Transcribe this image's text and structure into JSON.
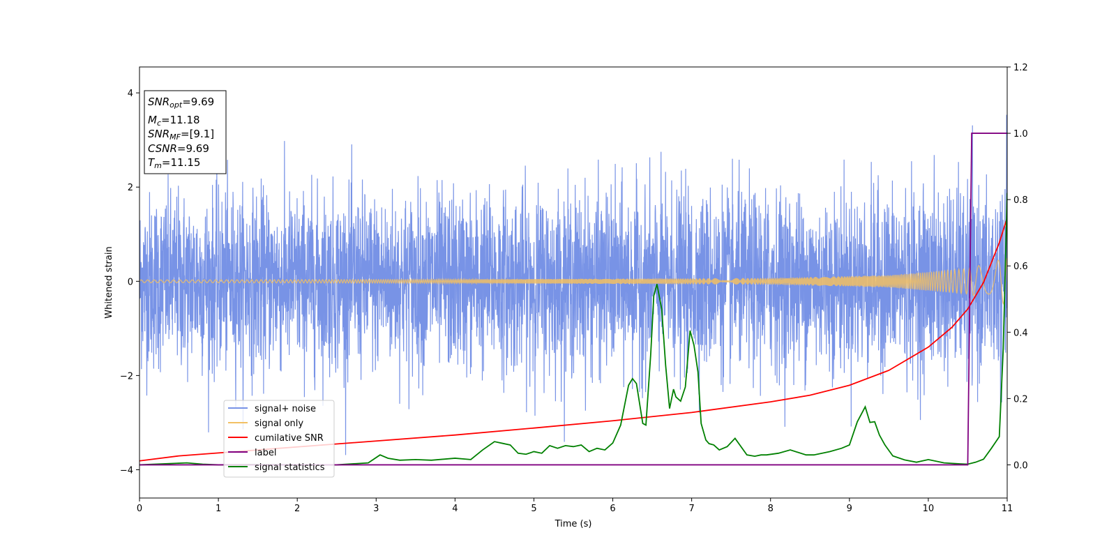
{
  "chart_data": {
    "type": "line",
    "xlabel": "Time (s)",
    "ylabel": "Whitened strain",
    "xlim": [
      0,
      11
    ],
    "ylim": [
      -4.6,
      4.55
    ],
    "y2lim": [
      -0.1,
      1.2
    ],
    "x_ticks": [
      "0",
      "1",
      "2",
      "3",
      "4",
      "5",
      "6",
      "7",
      "8",
      "9",
      "10",
      "11"
    ],
    "y_ticks": [
      "4",
      "2",
      "0",
      "−2",
      "−4"
    ],
    "y2_ticks": [
      "1.2",
      "1.0",
      "0.8",
      "0.6",
      "0.4",
      "0.2",
      "0.0"
    ],
    "grid": false,
    "legend_position": "lower-left",
    "info_box": {
      "snr_opt": {
        "base": "SNR",
        "sub": "opt",
        "value": "=9.69"
      },
      "mc": {
        "base": "M",
        "sub": "c",
        "value": "=11.18"
      },
      "snr_mf": {
        "base": "SNR",
        "sub": "MF",
        "value": "=[9.1]"
      },
      "csnr": {
        "base": "CSNR",
        "value": "=9.69"
      },
      "tm": {
        "base": "T",
        "sub": "m",
        "value": "=11.15"
      }
    },
    "series": [
      {
        "name": "signal+ noise",
        "color": "#7893e6",
        "axis": "left",
        "description_values": {
          "noise_std": 1.0,
          "noise_range": [
            -4.1,
            4.1
          ]
        }
      },
      {
        "name": "signal only",
        "color": "#f2c063",
        "axis": "left",
        "envelope": {
          "x": [
            0,
            4,
            8,
            9.5,
            10.5,
            11
          ],
          "amplitude": [
            0.03,
            0.04,
            0.07,
            0.13,
            0.27,
            0.5
          ]
        }
      },
      {
        "name": "cumilative SNR",
        "color": "#ff0000",
        "axis": "right",
        "x": [
          0,
          0.5,
          1,
          2,
          3,
          4,
          5,
          6,
          7,
          8,
          8.5,
          9,
          9.5,
          10,
          10.3,
          10.5,
          10.7,
          10.9,
          11
        ],
        "y": [
          0.012,
          0.027,
          0.036,
          0.054,
          0.072,
          0.09,
          0.111,
          0.133,
          0.158,
          0.19,
          0.21,
          0.24,
          0.285,
          0.355,
          0.415,
          0.47,
          0.55,
          0.67,
          0.745
        ]
      },
      {
        "name": "label",
        "color": "#800080",
        "axis": "right",
        "x": [
          0,
          10.5,
          10.55,
          11
        ],
        "y": [
          0.0,
          0.0,
          1.0,
          1.0
        ]
      },
      {
        "name": "signal statistics",
        "color": "#008000",
        "axis": "right",
        "x": [
          0,
          0.3,
          0.6,
          0.8,
          1,
          1.5,
          2,
          2.5,
          2.9,
          3.05,
          3.15,
          3.3,
          3.5,
          3.7,
          4.0,
          4.2,
          4.35,
          4.5,
          4.6,
          4.7,
          4.8,
          4.9,
          5.0,
          5.1,
          5.2,
          5.3,
          5.4,
          5.5,
          5.6,
          5.7,
          5.8,
          5.9,
          6.0,
          6.1,
          6.2,
          6.25,
          6.3,
          6.38,
          6.42,
          6.48,
          6.52,
          6.56,
          6.62,
          6.67,
          6.72,
          6.77,
          6.8,
          6.86,
          6.92,
          6.98,
          7.03,
          7.08,
          7.12,
          7.18,
          7.22,
          7.28,
          7.35,
          7.45,
          7.55,
          7.7,
          7.8,
          7.88,
          7.95,
          8.1,
          8.25,
          8.45,
          8.55,
          8.75,
          8.9,
          9.0,
          9.1,
          9.2,
          9.26,
          9.32,
          9.38,
          9.45,
          9.55,
          9.7,
          9.85,
          10.0,
          10.2,
          10.4,
          10.5,
          10.6,
          10.7,
          10.8,
          10.9,
          10.95,
          11.0
        ],
        "y": [
          0.0,
          0.003,
          0.006,
          0.002,
          0.0,
          0.001,
          0.0,
          0.0,
          0.006,
          0.03,
          0.02,
          0.014,
          0.016,
          0.014,
          0.02,
          0.016,
          0.045,
          0.07,
          0.065,
          0.06,
          0.035,
          0.032,
          0.04,
          0.035,
          0.058,
          0.05,
          0.058,
          0.055,
          0.06,
          0.04,
          0.05,
          0.045,
          0.066,
          0.12,
          0.24,
          0.26,
          0.245,
          0.125,
          0.12,
          0.33,
          0.51,
          0.545,
          0.47,
          0.3,
          0.17,
          0.228,
          0.205,
          0.192,
          0.235,
          0.405,
          0.36,
          0.28,
          0.125,
          0.075,
          0.064,
          0.06,
          0.045,
          0.055,
          0.08,
          0.03,
          0.026,
          0.03,
          0.03,
          0.035,
          0.045,
          0.03,
          0.03,
          0.04,
          0.05,
          0.06,
          0.13,
          0.175,
          0.128,
          0.13,
          0.09,
          0.06,
          0.027,
          0.015,
          0.008,
          0.016,
          0.006,
          0.003,
          0.002,
          0.008,
          0.017,
          0.05,
          0.085,
          0.35,
          0.82
        ]
      }
    ]
  }
}
